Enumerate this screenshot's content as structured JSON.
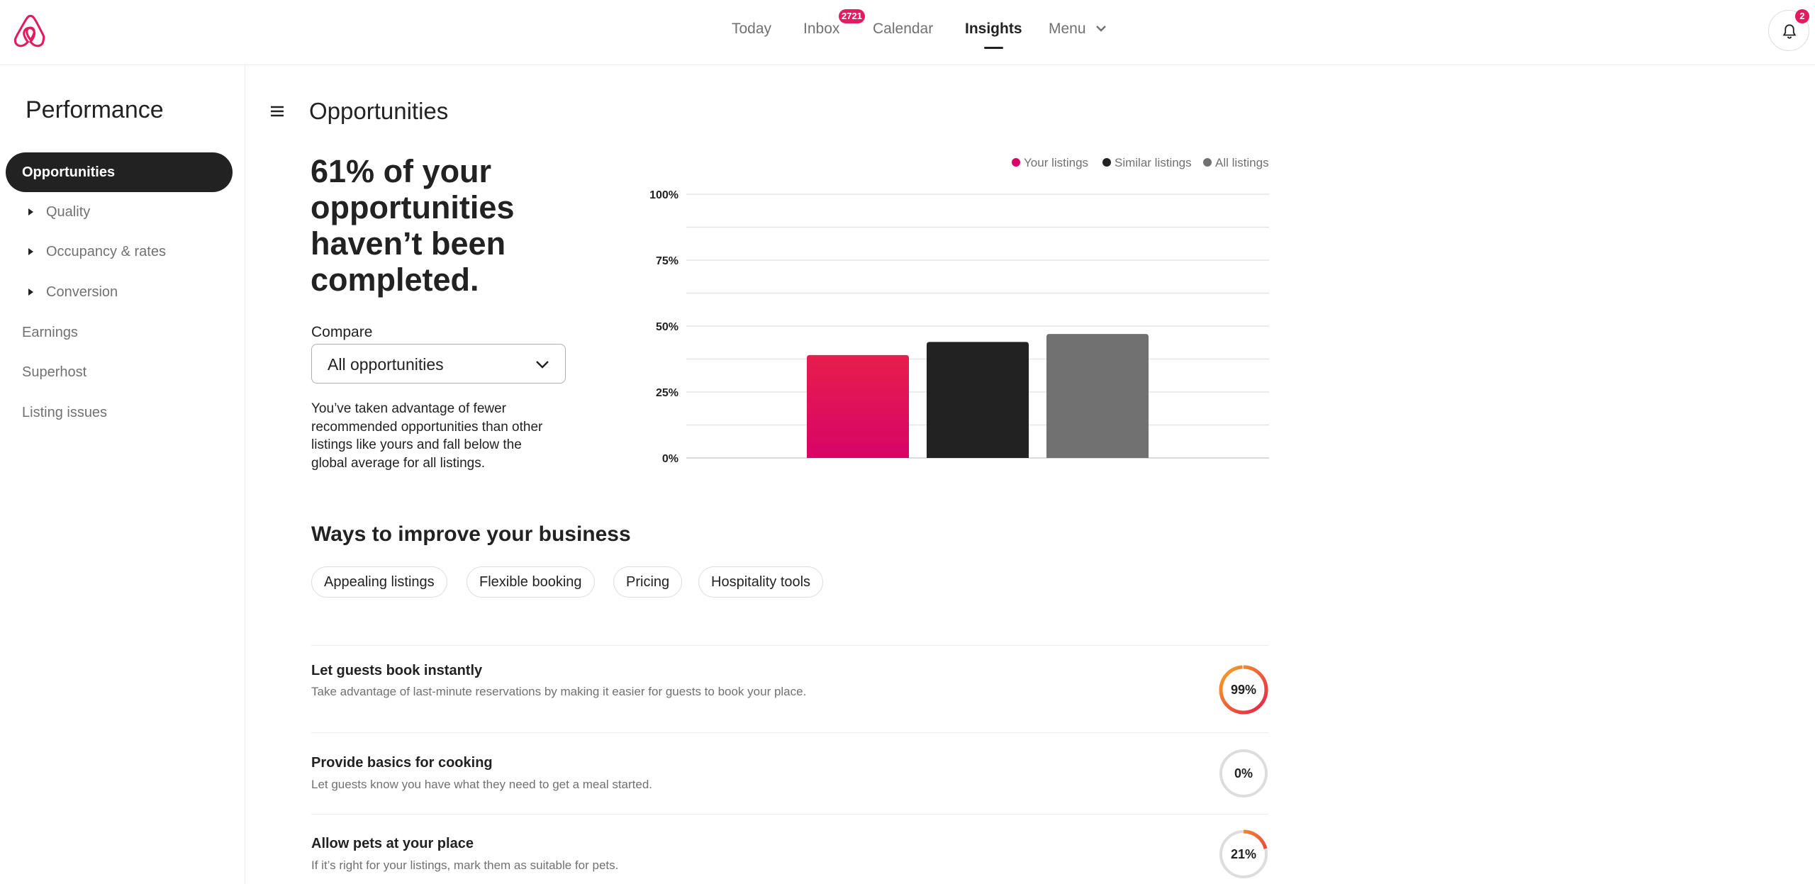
{
  "colors": {
    "brand": "#e31c5f",
    "your_listings": "#d70466",
    "similar_listings": "#222222",
    "all_listings": "#717171",
    "ring_track": "#dddddd",
    "ring_gradient_start": "#e61e4d",
    "ring_gradient_end": "#f5a623"
  },
  "header": {
    "logo": "airbnb-logo-icon",
    "nav": [
      {
        "label": "Today",
        "active": false
      },
      {
        "label": "Inbox",
        "active": false,
        "badge": "2721"
      },
      {
        "label": "Calendar",
        "active": false
      },
      {
        "label": "Insights",
        "active": true
      },
      {
        "label": "Menu",
        "active": false,
        "icon": "chevron-down-icon"
      }
    ],
    "notifications": {
      "icon": "bell-icon",
      "count": "2"
    }
  },
  "sidebar": {
    "title": "Performance",
    "items": [
      {
        "label": "Opportunities",
        "active": true
      },
      {
        "label": "Quality",
        "expandable": true
      },
      {
        "label": "Occupancy & rates",
        "expandable": true
      },
      {
        "label": "Conversion",
        "expandable": true
      },
      {
        "label": "Earnings"
      },
      {
        "label": "Superhost"
      },
      {
        "label": "Listing issues"
      }
    ]
  },
  "main": {
    "menu_icon": "hamburger-icon",
    "title": "Opportunities",
    "headline": "61% of your opportunities haven’t been completed.",
    "compare": {
      "label": "Compare",
      "selected": "All opportunities",
      "icon": "chevron-down-icon"
    },
    "description": "You’ve taken advantage of fewer recommended opportunities than other listings like yours and fall below the global average for all listings.",
    "improve": {
      "title": "Ways to improve your business",
      "chips": [
        "Appealing listings",
        "Flexible booking",
        "Pricing",
        "Hospitality tools"
      ],
      "items": [
        {
          "title": "Let guests book instantly",
          "description": "Take advantage of last-minute reservations by making it easier for guests to book your place.",
          "percent": 99,
          "percent_label": "99%"
        },
        {
          "title": "Provide basics for cooking",
          "description": "Let guests know you have what they need to get a meal started.",
          "percent": 0,
          "percent_label": "0%"
        },
        {
          "title": "Allow pets at your place",
          "description": "If it’s right for your listings, mark them as suitable for pets.",
          "percent": 21,
          "percent_label": "21%"
        }
      ]
    }
  },
  "chart_data": {
    "type": "bar",
    "categories": [
      "Your listings",
      "Similar listings",
      "All listings"
    ],
    "values": [
      39,
      44,
      47
    ],
    "legend": [
      "Your listings",
      "Similar listings",
      "All listings"
    ],
    "legend_position": "top-right",
    "yticks": [
      "0%",
      "25%",
      "50%",
      "75%",
      "100%"
    ],
    "ylim": [
      0,
      100
    ],
    "grid": true
  }
}
